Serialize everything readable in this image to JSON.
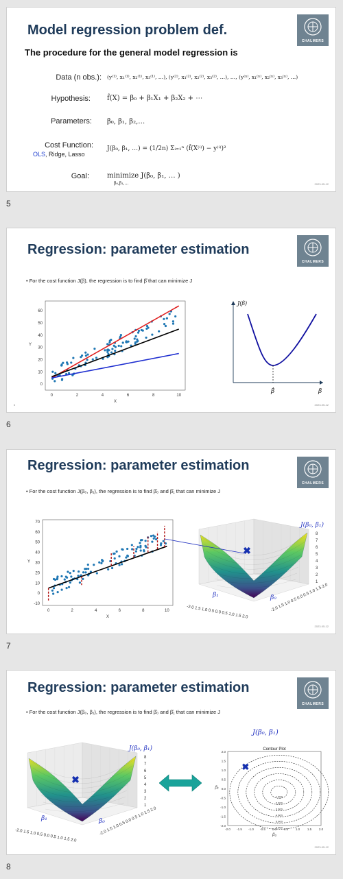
{
  "slides": [
    {
      "number": "5",
      "title": "Model regression problem def.",
      "subtitle": "The procedure for the general model regression is",
      "date": "2023-05-12",
      "rows": [
        {
          "label": "Data (n obs.):",
          "formula": "(y⁽¹⁾, x₁⁽¹⁾, x₂⁽¹⁾, x₃⁽¹⁾, …), (y⁽²⁾, x₁⁽²⁾, x₂⁽²⁾, x₃⁽²⁾, …), …, (y⁽ⁿ⁾, x₁⁽ⁿ⁾, x₂⁽ⁿ⁾, x₃⁽ⁿ⁾, …)"
        },
        {
          "label": "Hypothesis:",
          "formula": "f̂(X) = β₀ + β₁X₁ + β₂X₂ + ⋯"
        },
        {
          "label": "Parameters:",
          "formula": "β₀, β₁, β₂,…"
        },
        {
          "label": "Cost Function:",
          "formula": "J(β₀, β₁, …) = (1/2n) Σᵢ₌₁ⁿ (f̂(X⁽ⁱ⁾) − y⁽ⁱ⁾)²",
          "sublabel_ols": "OLS",
          "sublabel_rest": ", Ridge, Lasso"
        },
        {
          "label": "Goal:",
          "formula": "minimize J(β₀, β₁, … )",
          "formula_sub": "β₀,β₁,…"
        }
      ]
    },
    {
      "number": "6",
      "title": "Regression: parameter estimation",
      "bullet": "• For the cost function J(β), the regression is to find β̂ that can minimize J",
      "date": "2023-05-12",
      "small_num": "6",
      "scatter": {
        "x_ticks": [
          "0",
          "2",
          "4",
          "6",
          "8",
          "10"
        ],
        "y_ticks": [
          "0",
          "10",
          "20",
          "30",
          "40",
          "50",
          "60"
        ],
        "xlabel": "X",
        "ylabel": "Y"
      },
      "curve": {
        "ylabel": "J(β)",
        "xlabel": "β",
        "min_label": "β̂"
      }
    },
    {
      "number": "7",
      "title": "Regression: parameter estimation",
      "bullet": "• For the cost function J(β₀, β₁), the regression is to find β̂₀ and β̂₁ that can minimize J",
      "date": "2023-05-12",
      "scatter": {
        "x_ticks": [
          "0",
          "2",
          "4",
          "6",
          "8",
          "10"
        ],
        "y_ticks": [
          "-10",
          "0",
          "10",
          "20",
          "30",
          "40",
          "50",
          "60",
          "70"
        ],
        "xlabel": "X",
        "ylabel": "Y"
      },
      "surface": {
        "zlabel": "J(β₀, β₁)",
        "b0": "β₀",
        "b1": "β₁",
        "z_ticks": [
          "8",
          "7",
          "6",
          "5",
          "4",
          "3",
          "2",
          "1"
        ],
        "x_ticks": "-2.0 1.5 1.0 0.5 0.0 0.5 1.0 1.5 2.0"
      }
    },
    {
      "number": "8",
      "title": "Regression: parameter estimation",
      "bullet": "• For the cost function J(β₀, β₁), the regression is to find β̂₀ and β̂₁ that can minimize J",
      "date": "2023-05-12",
      "surface": {
        "zlabel": "J(β₀, β₁)",
        "b0": "β₀",
        "b1": "β₁",
        "z_ticks": [
          "8",
          "7",
          "6",
          "5",
          "4",
          "3",
          "2",
          "1"
        ],
        "x_ticks": "-2.0 1.5 1.0 0.5 0.0 0.5 1.0 1.5 2.0"
      },
      "contour": {
        "title": "Contour Plot",
        "top_label": "J(β₀, β₁)",
        "xlabel": "β₀",
        "ylabel": "β₁",
        "x_ticks": [
          "-2.0",
          "-1.5",
          "-1.0",
          "-0.5",
          "0.0",
          "0.5",
          "1.0",
          "1.5",
          "2.0"
        ],
        "y_ticks": [
          "2.0",
          "1.5",
          "1.0",
          "0.5",
          "0.0",
          "-0.5",
          "-1.0",
          "-1.5",
          "-2.0"
        ],
        "levels": [
          "1.000",
          "2.000",
          "3.000",
          "4.000",
          "5.000",
          "6.000"
        ]
      }
    }
  ],
  "logo_text": "CHALMERS",
  "colors": {
    "title": "#1f3b5a",
    "logo_bg": "#6f8391",
    "scatter_points": "#1f77b4",
    "red_line": "#e02020",
    "blue_line": "#1f2fd0",
    "curve": "#1010a0",
    "arrow": "#1aa39a"
  }
}
